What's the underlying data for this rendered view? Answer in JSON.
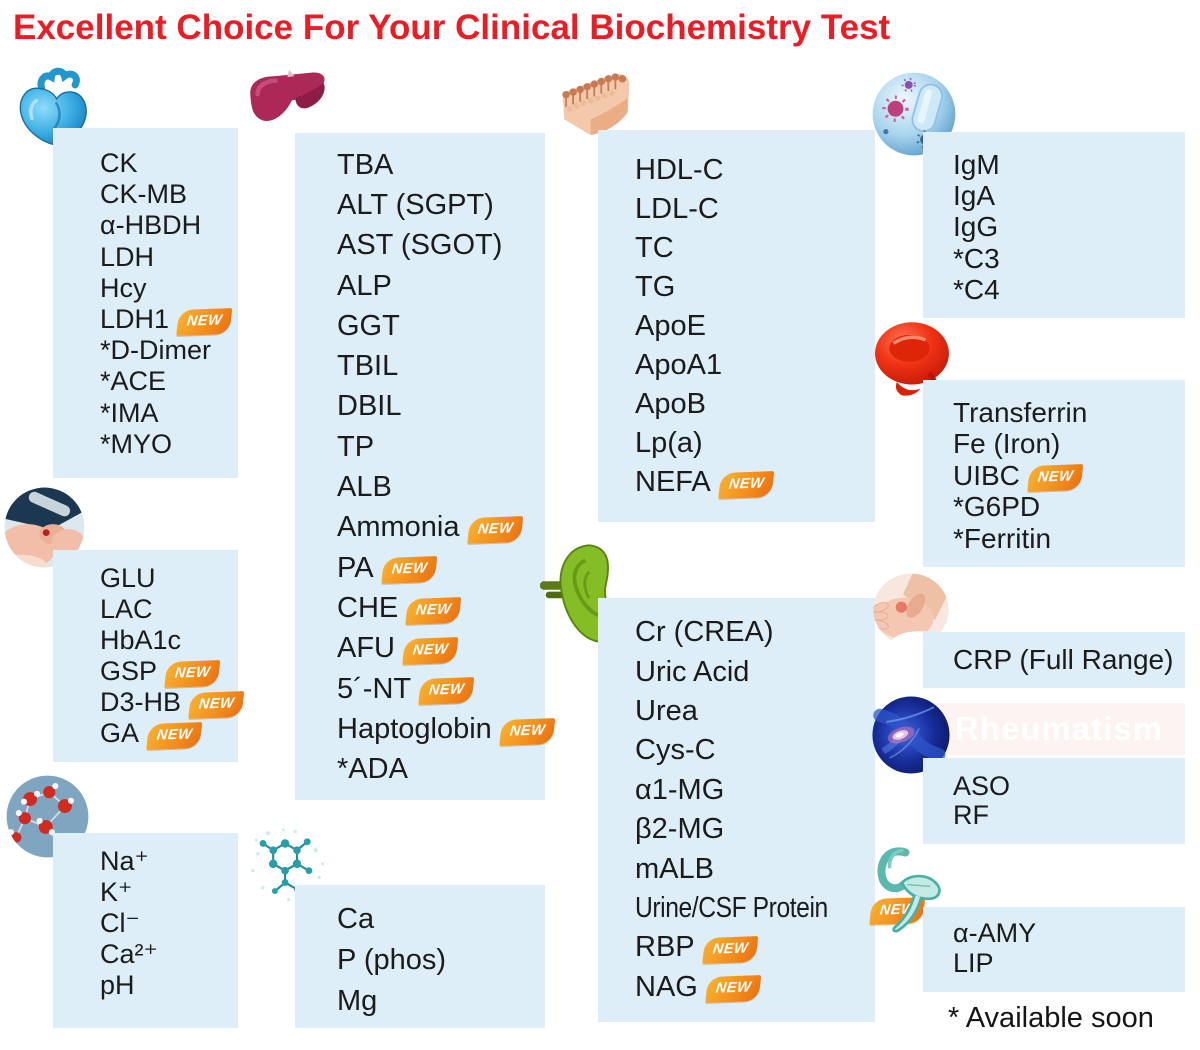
{
  "title": "Excellent Choice For Your Clinical Biochemistry Test",
  "footnote": "* Available soon",
  "badge_label": "NEW",
  "colors": {
    "title_red": "#ec1c24",
    "panel_background": "#ddeef8",
    "text": "#1b1b1b",
    "badge_orange_start": "#f9b233",
    "badge_orange_end": "#e96f10",
    "rheumatism_band_background": "#fdf3f0",
    "rheumatism_band_text": "#ffffff"
  },
  "panels": {
    "cardiac": {
      "icon": "heart-icon",
      "items": [
        {
          "label": "CK"
        },
        {
          "label": "CK-MB"
        },
        {
          "label": "α-HBDH"
        },
        {
          "label": "LDH"
        },
        {
          "label": "Hcy"
        },
        {
          "label": "LDH1",
          "new": true
        },
        {
          "label": "*D-Dimer"
        },
        {
          "label": "*ACE"
        },
        {
          "label": "*IMA"
        },
        {
          "label": "*MYO"
        }
      ]
    },
    "glucose": {
      "icon": "blood-sampling-icon",
      "items": [
        {
          "label": "GLU"
        },
        {
          "label": "LAC"
        },
        {
          "label": "HbA1c"
        },
        {
          "label": "GSP",
          "new": true
        },
        {
          "label": "D3-HB",
          "new": true
        },
        {
          "label": "GA",
          "new": true
        }
      ]
    },
    "electrolytes": {
      "icon": "water-molecule-icon",
      "items": [
        {
          "label": "Na⁺"
        },
        {
          "label": "K⁺"
        },
        {
          "label": "Cl⁻"
        },
        {
          "label": "Ca²⁺"
        },
        {
          "label": "pH"
        }
      ]
    },
    "liver": {
      "icon": "liver-icon",
      "items": [
        {
          "label": "TBA"
        },
        {
          "label": "ALT (SGPT)"
        },
        {
          "label": "AST (SGOT)"
        },
        {
          "label": "ALP"
        },
        {
          "label": "GGT"
        },
        {
          "label": "TBIL"
        },
        {
          "label": "DBIL"
        },
        {
          "label": "TP"
        },
        {
          "label": "ALB"
        },
        {
          "label": "Ammonia",
          "new": true
        },
        {
          "label": "PA",
          "new": true
        },
        {
          "label": "CHE",
          "new": true
        },
        {
          "label": "AFU",
          "new": true
        },
        {
          "label": "5´-NT",
          "new": true
        },
        {
          "label": "Haptoglobin",
          "new": true
        },
        {
          "label": "*ADA"
        }
      ]
    },
    "minerals": {
      "icon": "organic-molecule-icon",
      "items": [
        {
          "label": "Ca"
        },
        {
          "label": "P (phos)"
        },
        {
          "label": "Mg"
        }
      ]
    },
    "lipids": {
      "icon": "lipid-membrane-icon",
      "items": [
        {
          "label": "HDL-C"
        },
        {
          "label": "LDL-C"
        },
        {
          "label": "TC"
        },
        {
          "label": "TG"
        },
        {
          "label": "ApoE"
        },
        {
          "label": "ApoA1"
        },
        {
          "label": "ApoB"
        },
        {
          "label": "Lp(a)"
        },
        {
          "label": "NEFA",
          "new": true
        }
      ]
    },
    "renal": {
      "icon": "kidney-icon",
      "items": [
        {
          "label": "Cr (CREA)"
        },
        {
          "label": "Uric Acid"
        },
        {
          "label": "Urea"
        },
        {
          "label": "Cys-C"
        },
        {
          "label": "α1-MG"
        },
        {
          "label": "β2-MG"
        },
        {
          "label": "mALB"
        },
        {
          "label": "Urine/CSF Protein",
          "new": true,
          "condensed": true
        },
        {
          "label": "RBP",
          "new": true
        },
        {
          "label": "NAG",
          "new": true
        }
      ]
    },
    "immunology": {
      "icon": "virus-icon",
      "items": [
        {
          "label": "IgM"
        },
        {
          "label": "IgA"
        },
        {
          "label": "IgG"
        },
        {
          "label": "*C3"
        },
        {
          "label": "*C4"
        }
      ]
    },
    "iron": {
      "icon": "red-blood-cell-icon",
      "items": [
        {
          "label": "Transferrin"
        },
        {
          "label": "Fe (Iron)"
        },
        {
          "label": "UIBC",
          "new": true
        },
        {
          "label": "*G6PD"
        },
        {
          "label": "*Ferritin"
        }
      ]
    },
    "inflammation": {
      "icon": "hand-massage-icon",
      "items": [
        {
          "label": "CRP (Full Range)"
        }
      ]
    },
    "rheumatism": {
      "icon": "joint-icon",
      "heading": "Rheumatism",
      "items": [
        {
          "label": "ASO"
        },
        {
          "label": "RF"
        }
      ]
    },
    "pancreatic": {
      "icon": "pancreas-icon",
      "items": [
        {
          "label": "α-AMY"
        },
        {
          "label": "LIP"
        }
      ]
    }
  }
}
